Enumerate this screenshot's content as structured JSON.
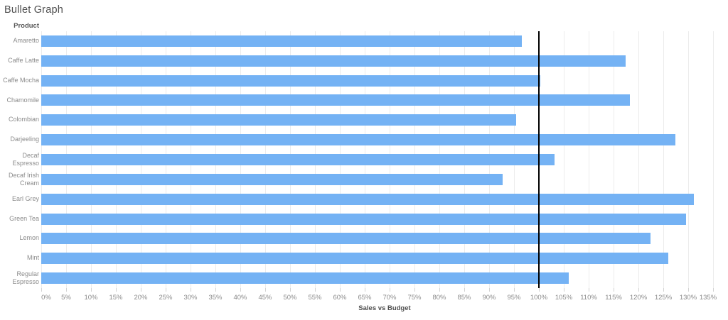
{
  "title": "Bullet Graph",
  "row_header": "Product",
  "axis_title": "Sales vs Budget",
  "colors": {
    "bar": "#74b2f4",
    "reference_line": "#000000",
    "gridline": "#ececec",
    "tick_mark": "#d2d2d2",
    "label_text": "#8b8b8b",
    "heading_text": "#4f4f4f"
  },
  "chart_data": {
    "type": "bar",
    "orientation": "horizontal",
    "title": "Bullet Graph",
    "xlabel": "Sales vs Budget",
    "ylabel": "Product",
    "unit": "%",
    "xlim": [
      0,
      135.7
    ],
    "tick_min": 0,
    "tick_max": 135,
    "tick_step": 5,
    "tick_suffix": "%",
    "grid": "vertical",
    "legend": "none",
    "reference_line": 100,
    "categories": [
      "Amaretto",
      "Caffe Latte",
      "Caffe Mocha",
      "Chamomile",
      "Colombian",
      "Darjeeling",
      "Decaf Espresso",
      "Decaf Irish Cream",
      "Earl Grey",
      "Green Tea",
      "Lemon",
      "Mint",
      "Regular Espresso"
    ],
    "values": [
      96.5,
      117.4,
      100.3,
      118.3,
      95.4,
      127.4,
      103.1,
      92.7,
      131.1,
      129.5,
      122.4,
      126.0,
      106.0
    ]
  }
}
